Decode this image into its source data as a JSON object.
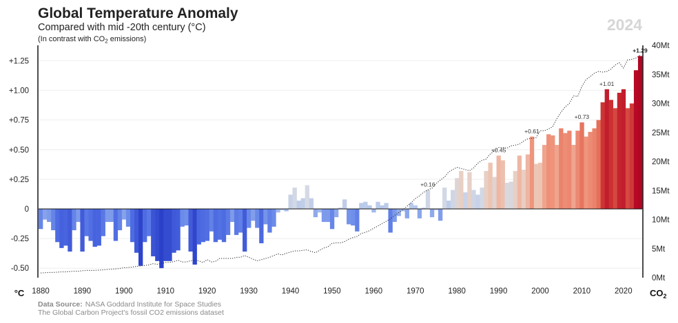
{
  "header": {
    "title": "Global Temperature Anomaly",
    "subtitle": "Compared with mid -20th century (°C)",
    "note_prefix": "(In contrast with CO",
    "note_sub": "2",
    "note_suffix": " emissions)",
    "year_badge": "2024"
  },
  "axes": {
    "left_unit": "°C",
    "right_unit_main": "CO",
    "right_unit_sub": "2"
  },
  "source": {
    "label": "Data Source:",
    "line1": "NASA Goddard Institute for Space Studies",
    "line2": "The Global Carbon Project's fossil CO2 emissions dataset"
  },
  "chart_data": {
    "type": "bar",
    "title": "Global Temperature Anomaly",
    "subtitle": "Compared with mid -20th century (°C)",
    "ylabel": "°C",
    "y2label": "CO2",
    "ylim": [
      -0.58,
      1.38
    ],
    "y2lim": [
      0,
      40
    ],
    "y_ticks": [
      {
        "value": 1.25,
        "label": "+1.25"
      },
      {
        "value": 1.0,
        "label": "+1.00"
      },
      {
        "value": 0.75,
        "label": "+0.75"
      },
      {
        "value": 0.5,
        "label": "+0.50"
      },
      {
        "value": 0.25,
        "label": "+0.25"
      },
      {
        "value": 0,
        "label": "0"
      },
      {
        "value": -0.25,
        "label": "-0.25"
      },
      {
        "value": -0.5,
        "label": "-0.50"
      }
    ],
    "y2_ticks": [
      {
        "value": 40,
        "label": "40Mt"
      },
      {
        "value": 35,
        "label": "35Mt"
      },
      {
        "value": 30,
        "label": "30Mt"
      },
      {
        "value": 25,
        "label": "25Mt"
      },
      {
        "value": 20,
        "label": "20Mt"
      },
      {
        "value": 15,
        "label": "15Mt"
      },
      {
        "value": 10,
        "label": "10Mt"
      },
      {
        "value": 5,
        "label": "5Mt"
      },
      {
        "value": 0,
        "label": "0Mt"
      }
    ],
    "x_ticks": [
      1880,
      1890,
      1900,
      1910,
      1920,
      1930,
      1940,
      1950,
      1960,
      1970,
      1980,
      1990,
      2000,
      2010,
      2020
    ],
    "series": [
      {
        "name": "Temperature anomaly (°C)",
        "start_year": 1880,
        "end_year": 2024,
        "values": [
          -0.17,
          -0.09,
          -0.11,
          -0.18,
          -0.28,
          -0.33,
          -0.31,
          -0.36,
          -0.18,
          -0.11,
          -0.36,
          -0.23,
          -0.27,
          -0.32,
          -0.31,
          -0.23,
          -0.11,
          -0.11,
          -0.27,
          -0.18,
          -0.09,
          -0.15,
          -0.28,
          -0.37,
          -0.48,
          -0.28,
          -0.23,
          -0.4,
          -0.44,
          -0.5,
          -0.44,
          -0.44,
          -0.37,
          -0.35,
          -0.15,
          -0.14,
          -0.36,
          -0.47,
          -0.3,
          -0.28,
          -0.27,
          -0.19,
          -0.28,
          -0.26,
          -0.28,
          -0.22,
          -0.11,
          -0.22,
          -0.2,
          -0.36,
          -0.16,
          -0.1,
          -0.16,
          -0.29,
          -0.13,
          -0.2,
          -0.15,
          -0.03,
          -0.01,
          -0.02,
          0.12,
          0.18,
          0.07,
          0.09,
          0.2,
          0.09,
          -0.07,
          -0.03,
          -0.11,
          -0.11,
          -0.17,
          -0.07,
          0.01,
          0.08,
          -0.13,
          -0.14,
          -0.19,
          0.05,
          0.06,
          0.03,
          -0.03,
          0.06,
          0.03,
          0.05,
          -0.2,
          -0.11,
          -0.06,
          -0.02,
          -0.08,
          0.05,
          0.03,
          -0.08,
          0.01,
          0.16,
          -0.07,
          -0.01,
          -0.1,
          0.18,
          0.07,
          0.16,
          0.26,
          0.32,
          0.14,
          0.31,
          0.16,
          0.12,
          0.18,
          0.32,
          0.39,
          0.27,
          0.45,
          0.41,
          0.22,
          0.23,
          0.32,
          0.45,
          0.33,
          0.46,
          0.61,
          0.38,
          0.39,
          0.54,
          0.63,
          0.62,
          0.54,
          0.68,
          0.64,
          0.66,
          0.54,
          0.66,
          0.73,
          0.61,
          0.65,
          0.68,
          0.75,
          0.9,
          1.01,
          0.92,
          0.85,
          0.98,
          1.01,
          0.85,
          0.89,
          1.17,
          1.29
        ]
      },
      {
        "name": "Fossil CO2 emissions (Mt)",
        "axis": "right",
        "style": "dotted",
        "values": [
          0.8,
          0.85,
          0.9,
          0.9,
          0.95,
          1.0,
          1.0,
          1.05,
          1.1,
          1.1,
          1.2,
          1.25,
          1.25,
          1.25,
          1.3,
          1.35,
          1.4,
          1.45,
          1.5,
          1.6,
          1.7,
          1.75,
          1.8,
          1.95,
          2.0,
          2.1,
          2.2,
          2.4,
          2.3,
          2.45,
          2.6,
          2.65,
          2.75,
          3.0,
          2.7,
          2.7,
          2.9,
          3.0,
          2.9,
          2.6,
          3.1,
          2.7,
          2.8,
          3.3,
          3.3,
          3.3,
          3.3,
          3.5,
          3.5,
          3.8,
          3.5,
          3.2,
          2.9,
          3.1,
          3.3,
          3.5,
          3.8,
          4.1,
          3.9,
          4.2,
          4.4,
          4.6,
          4.6,
          4.7,
          4.8,
          4.5,
          4.3,
          4.7,
          5.1,
          5.3,
          5.9,
          6.0,
          6.0,
          6.2,
          6.6,
          6.9,
          7.1,
          7.6,
          7.8,
          8.1,
          8.5,
          8.9,
          9.3,
          9.7,
          10.1,
          10.7,
          11.2,
          11.7,
          12.3,
          12.9,
          13.6,
          14.1,
          14.7,
          15.1,
          15.4,
          16.2,
          16.8,
          17.3,
          18.2,
          18.6,
          19.0,
          18.8,
          18.6,
          18.4,
          18.9,
          19.7,
          20.2,
          20.4,
          21.3,
          21.8,
          22.4,
          22.4,
          22.3,
          22.7,
          22.8,
          23.0,
          23.5,
          23.9,
          24.0,
          24.1,
          25.3,
          25.3,
          25.6,
          26.0,
          27.4,
          28.5,
          29.4,
          30.0,
          31.3,
          31.2,
          32.9,
          34.1,
          34.6,
          35.2,
          35.5,
          35.4,
          35.5,
          35.9,
          36.6,
          37.0,
          36.1,
          37.5,
          37.6,
          37.8,
          38.3
        ]
      }
    ],
    "annotations": [
      {
        "year": 1973,
        "value": 0.16,
        "label": "+0.16"
      },
      {
        "year": 1990,
        "value": 0.45,
        "label": "+0.45"
      },
      {
        "year": 1998,
        "value": 0.61,
        "label": "+0.61"
      },
      {
        "year": 2010,
        "value": 0.73,
        "label": "+0.73"
      },
      {
        "year": 2016,
        "value": 1.01,
        "label": "+1.01"
      },
      {
        "year": 2024,
        "value": 1.29,
        "label": "+1.29",
        "bold": true
      }
    ]
  }
}
